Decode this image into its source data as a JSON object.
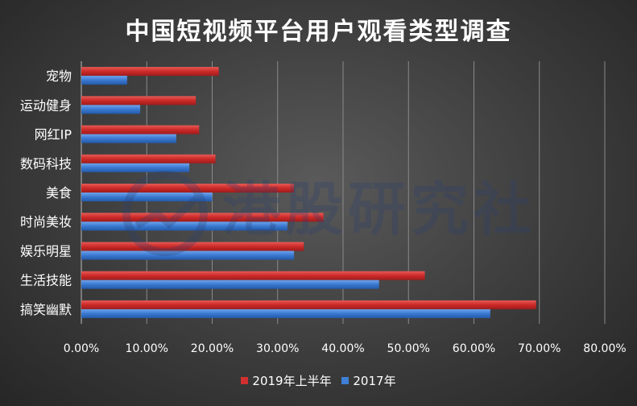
{
  "chart_data": {
    "type": "bar",
    "orientation": "horizontal",
    "title": "中国短视频平台用户观看类型调查",
    "categories": [
      "宠物",
      "运动健身",
      "网红IP",
      "数码科技",
      "美食",
      "时尚美妆",
      "娱乐明星",
      "生活技能",
      "搞笑幽默"
    ],
    "series": [
      {
        "name": "2019年上半年",
        "color": "#d0302f",
        "values": [
          21.0,
          17.5,
          18.0,
          20.5,
          32.5,
          37.0,
          34.0,
          52.5,
          69.5
        ]
      },
      {
        "name": "2017年",
        "color": "#3f7fd6",
        "values": [
          7.0,
          9.0,
          14.5,
          16.5,
          20.0,
          31.5,
          32.5,
          45.5,
          62.5
        ]
      }
    ],
    "x_ticks": [
      "0.00%",
      "10.00%",
      "20.00%",
      "30.00%",
      "40.00%",
      "50.00%",
      "60.00%",
      "70.00%",
      "80.00%"
    ],
    "xlim": [
      0,
      80
    ],
    "grid": true,
    "legend_position": "bottom"
  },
  "watermark": {
    "text": "港股研究社"
  }
}
